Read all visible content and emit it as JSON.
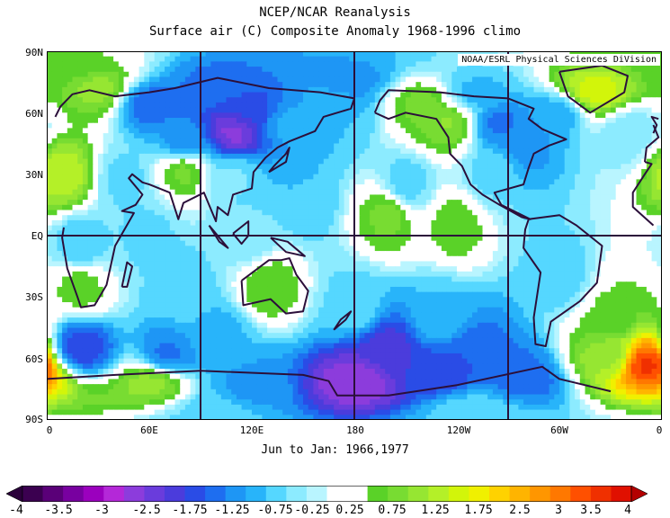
{
  "title": "NCEP/NCAR Reanalysis",
  "subtitle": "Surface air (C) Composite Anomaly 1968-1996 climo",
  "credit": "NOAA/ESRL Physical Sciences DiVision",
  "period": "Jun to Jan: 1966,1977",
  "y_ticks": [
    "90N",
    "60N",
    "30N",
    "EQ",
    "30S",
    "60S",
    "90S"
  ],
  "x_ticks": [
    "0",
    "60E",
    "120E",
    "180",
    "120W",
    "60W",
    "0"
  ],
  "colorbar": {
    "labels": [
      "-4",
      "-3.5",
      "-3",
      "-2.5",
      "-1.75",
      "-1.25",
      "-0.75",
      "-0.25",
      "0.25",
      "0.75",
      "1.25",
      "1.75",
      "2.5",
      "3",
      "3.5",
      "4"
    ],
    "colors": [
      "#3b0050",
      "#5a0078",
      "#7800a0",
      "#9b00be",
      "#b428d8",
      "#8c3cdc",
      "#6a3cdc",
      "#4b3cdc",
      "#2a4ce6",
      "#1e6ef0",
      "#1e96f5",
      "#28b4fa",
      "#55d7ff",
      "#8cebff",
      "#b9f5ff",
      "#ffffff",
      "#ffffff",
      "#5ad228",
      "#78dc32",
      "#96e632",
      "#b4f028",
      "#d2f50a",
      "#f0f000",
      "#ffd200",
      "#ffb400",
      "#ff9600",
      "#ff7800",
      "#ff5000",
      "#f03000",
      "#e01000"
    ]
  },
  "anomaly_field": [
    {
      "lat": 82,
      "lon": 10,
      "value": 0.6
    },
    {
      "lat": 72,
      "lon": 30,
      "value": 1.2
    },
    {
      "lat": 65,
      "lon": 60,
      "value": -1.5
    },
    {
      "lat": 75,
      "lon": 100,
      "value": -1.4
    },
    {
      "lat": 60,
      "lon": 120,
      "value": -1.8
    },
    {
      "lat": 50,
      "lon": 110,
      "value": -2.5
    },
    {
      "lat": 45,
      "lon": 80,
      "value": -1.3
    },
    {
      "lat": 55,
      "lon": 140,
      "value": -1.0
    },
    {
      "lat": 60,
      "lon": 170,
      "value": -0.8
    },
    {
      "lat": 75,
      "lon": 180,
      "value": -1.2
    },
    {
      "lat": 65,
      "lon": 220,
      "value": 0.9
    },
    {
      "lat": 55,
      "lon": 235,
      "value": 1.1
    },
    {
      "lat": 70,
      "lon": 250,
      "value": -0.9
    },
    {
      "lat": 55,
      "lon": 265,
      "value": -1.4
    },
    {
      "lat": 45,
      "lon": 280,
      "value": -1.2
    },
    {
      "lat": 60,
      "lon": 300,
      "value": -1.0
    },
    {
      "lat": 70,
      "lon": 320,
      "value": 1.8
    },
    {
      "lat": 50,
      "lon": 340,
      "value": -0.5
    },
    {
      "lat": 30,
      "lon": 10,
      "value": 1.5
    },
    {
      "lat": 28,
      "lon": 45,
      "value": -0.6
    },
    {
      "lat": 32,
      "lon": 80,
      "value": 0.9
    },
    {
      "lat": 30,
      "lon": 110,
      "value": -0.5
    },
    {
      "lat": 20,
      "lon": 150,
      "value": -0.8
    },
    {
      "lat": 25,
      "lon": 210,
      "value": -0.7
    },
    {
      "lat": 30,
      "lon": 260,
      "value": -0.6
    },
    {
      "lat": 10,
      "lon": 200,
      "value": 0.9
    },
    {
      "lat": 5,
      "lon": 240,
      "value": 0.7
    },
    {
      "lat": 0,
      "lon": 60,
      "value": -0.6
    },
    {
      "lat": 0,
      "lon": 120,
      "value": -0.5
    },
    {
      "lat": -5,
      "lon": 20,
      "value": -0.8
    },
    {
      "lat": -20,
      "lon": 300,
      "value": -0.7
    },
    {
      "lat": -25,
      "lon": 130,
      "value": 0.8
    },
    {
      "lat": -25,
      "lon": 20,
      "value": 0.7
    },
    {
      "lat": -30,
      "lon": 80,
      "value": -0.7
    },
    {
      "lat": -35,
      "lon": 180,
      "value": -0.6
    },
    {
      "lat": -40,
      "lon": 230,
      "value": -0.8
    },
    {
      "lat": -40,
      "lon": 330,
      "value": 0.6
    },
    {
      "lat": -48,
      "lon": 100,
      "value": -0.9
    },
    {
      "lat": -55,
      "lon": 20,
      "value": -1.8
    },
    {
      "lat": -58,
      "lon": 70,
      "value": -1.4
    },
    {
      "lat": -55,
      "lon": 200,
      "value": -2.0
    },
    {
      "lat": -58,
      "lon": 250,
      "value": -1.6
    },
    {
      "lat": -60,
      "lon": 330,
      "value": 1.2
    },
    {
      "lat": -63,
      "lon": 350,
      "value": 3.6
    },
    {
      "lat": -72,
      "lon": 60,
      "value": 1.2
    },
    {
      "lat": -75,
      "lon": 120,
      "value": -1.2
    },
    {
      "lat": -72,
      "lon": 180,
      "value": -2.6
    },
    {
      "lat": -68,
      "lon": 230,
      "value": -1.8
    },
    {
      "lat": -70,
      "lon": 280,
      "value": -1.5
    },
    {
      "lat": -85,
      "lon": 100,
      "value": -0.7
    },
    {
      "lat": -85,
      "lon": 250,
      "value": -0.6
    }
  ],
  "coastlines": [
    {
      "name": "eurasia-africa",
      "points": [
        [
          -10,
          36
        ],
        [
          -9,
          43
        ],
        [
          -2,
          48
        ],
        [
          -5,
          54
        ],
        [
          5,
          58
        ],
        [
          8,
          63
        ],
        [
          15,
          69
        ],
        [
          25,
          71
        ],
        [
          40,
          68
        ],
        [
          60,
          70
        ],
        [
          75,
          72
        ],
        [
          100,
          77
        ],
        [
          130,
          72
        ],
        [
          160,
          70
        ],
        [
          180,
          67
        ],
        [
          178,
          62
        ],
        [
          162,
          58
        ],
        [
          157,
          51
        ],
        [
          142,
          46
        ],
        [
          135,
          43
        ],
        [
          128,
          38
        ],
        [
          121,
          31
        ],
        [
          120,
          23
        ],
        [
          109,
          20
        ],
        [
          106,
          10
        ],
        [
          100,
          14
        ],
        [
          99,
          7
        ],
        [
          92,
          21
        ],
        [
          80,
          16
        ],
        [
          77,
          8
        ],
        [
          72,
          21
        ],
        [
          60,
          25
        ],
        [
          56,
          26
        ],
        [
          50,
          30
        ],
        [
          48,
          28
        ],
        [
          56,
          20
        ],
        [
          52,
          15
        ],
        [
          44,
          12
        ],
        [
          51,
          11
        ],
        [
          40,
          -5
        ],
        [
          35,
          -24
        ],
        [
          28,
          -34
        ],
        [
          20,
          -35
        ],
        [
          18,
          -30
        ],
        [
          12,
          -16
        ],
        [
          9,
          -1
        ],
        [
          10,
          4
        ],
        [
          -5,
          5
        ],
        [
          -17,
          14
        ],
        [
          -17,
          21
        ],
        [
          -10,
          30
        ],
        [
          -6,
          35
        ],
        [
          -10,
          36
        ]
      ]
    },
    {
      "name": "north-america",
      "points": [
        [
          192,
          60
        ],
        [
          195,
          66
        ],
        [
          200,
          71
        ],
        [
          230,
          70
        ],
        [
          250,
          68
        ],
        [
          270,
          67
        ],
        [
          285,
          62
        ],
        [
          282,
          57
        ],
        [
          290,
          52
        ],
        [
          304,
          47
        ],
        [
          294,
          44
        ],
        [
          285,
          40
        ],
        [
          282,
          33
        ],
        [
          279,
          25
        ],
        [
          262,
          21
        ],
        [
          266,
          15
        ],
        [
          283,
          8
        ],
        [
          278,
          9
        ],
        [
          265,
          15
        ],
        [
          255,
          20
        ],
        [
          248,
          25
        ],
        [
          243,
          34
        ],
        [
          236,
          40
        ],
        [
          235,
          48
        ],
        [
          228,
          57
        ],
        [
          210,
          60
        ],
        [
          200,
          57
        ],
        [
          192,
          60
        ]
      ]
    },
    {
      "name": "south-america",
      "points": [
        [
          282,
          8
        ],
        [
          300,
          10
        ],
        [
          310,
          5
        ],
        [
          325,
          -5
        ],
        [
          322,
          -23
        ],
        [
          312,
          -32
        ],
        [
          295,
          -42
        ],
        [
          292,
          -54
        ],
        [
          286,
          -53
        ],
        [
          285,
          -40
        ],
        [
          289,
          -18
        ],
        [
          279,
          -6
        ],
        [
          280,
          3
        ],
        [
          282,
          8
        ]
      ]
    },
    {
      "name": "greenland",
      "points": [
        [
          300,
          80
        ],
        [
          325,
          83
        ],
        [
          340,
          78
        ],
        [
          338,
          70
        ],
        [
          318,
          60
        ],
        [
          305,
          68
        ],
        [
          300,
          80
        ]
      ]
    },
    {
      "name": "australia",
      "points": [
        [
          114,
          -22
        ],
        [
          130,
          -12
        ],
        [
          137,
          -12
        ],
        [
          142,
          -11
        ],
        [
          146,
          -19
        ],
        [
          153,
          -27
        ],
        [
          150,
          -37
        ],
        [
          140,
          -38
        ],
        [
          131,
          -31
        ],
        [
          115,
          -34
        ],
        [
          114,
          -22
        ]
      ]
    },
    {
      "name": "antarctica",
      "points": [
        [
          0,
          -70
        ],
        [
          40,
          -68
        ],
        [
          90,
          -66
        ],
        [
          150,
          -68
        ],
        [
          165,
          -71
        ],
        [
          170,
          -78
        ],
        [
          200,
          -78
        ],
        [
          240,
          -73
        ],
        [
          290,
          -64
        ],
        [
          300,
          -70
        ],
        [
          330,
          -76
        ],
        [
          360,
          -70
        ]
      ]
    },
    {
      "name": "madagascar",
      "points": [
        [
          44,
          -25
        ],
        [
          47,
          -13
        ],
        [
          50,
          -15
        ],
        [
          47,
          -25
        ],
        [
          44,
          -25
        ]
      ]
    },
    {
      "name": "new-zealand",
      "points": [
        [
          168,
          -46
        ],
        [
          172,
          -41
        ],
        [
          178,
          -37
        ],
        [
          175,
          -41
        ],
        [
          168,
          -46
        ]
      ]
    },
    {
      "name": "british-isles",
      "points": [
        [
          -5,
          50
        ],
        [
          2,
          52
        ],
        [
          -2,
          57
        ],
        [
          -6,
          58
        ],
        [
          -3,
          54
        ],
        [
          -5,
          50
        ]
      ]
    },
    {
      "name": "borneo",
      "points": [
        [
          109,
          1
        ],
        [
          118,
          7
        ],
        [
          118,
          0
        ],
        [
          114,
          -4
        ],
        [
          109,
          1
        ]
      ]
    },
    {
      "name": "sumatra",
      "points": [
        [
          95,
          5
        ],
        [
          106,
          -6
        ],
        [
          101,
          -3
        ],
        [
          95,
          5
        ]
      ]
    },
    {
      "name": "japan",
      "points": [
        [
          130,
          31
        ],
        [
          140,
          36
        ],
        [
          142,
          43
        ],
        [
          140,
          40
        ],
        [
          133,
          34
        ],
        [
          130,
          31
        ]
      ]
    },
    {
      "name": "new-guinea",
      "points": [
        [
          131,
          -1
        ],
        [
          141,
          -3
        ],
        [
          151,
          -10
        ],
        [
          140,
          -8
        ],
        [
          131,
          -1
        ]
      ]
    }
  ]
}
